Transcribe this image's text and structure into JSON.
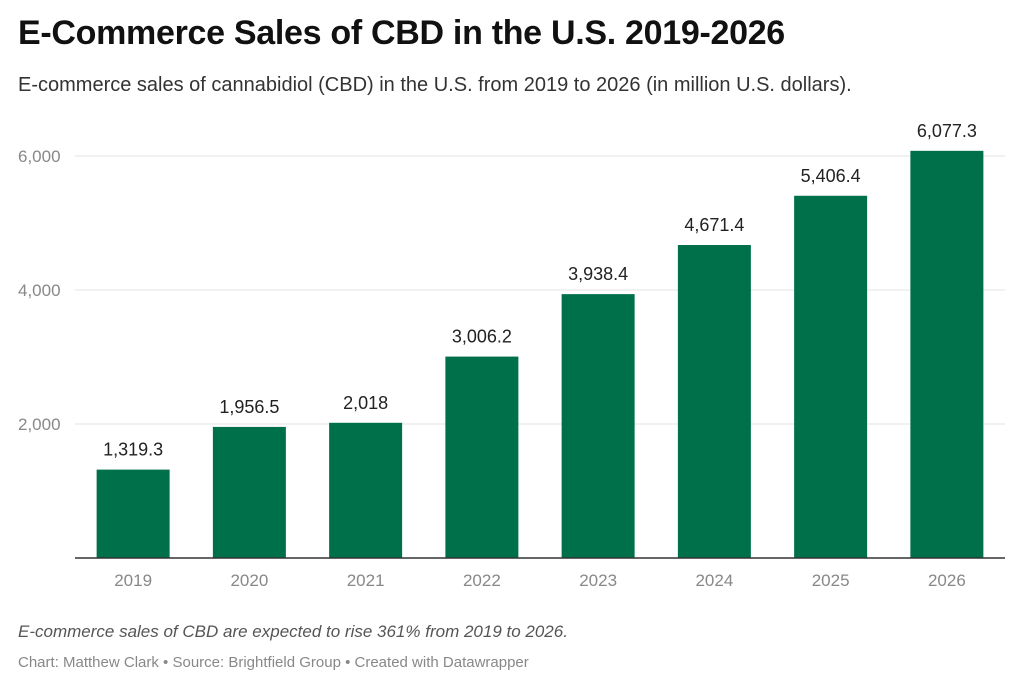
{
  "header": {
    "title": "E-Commerce Sales of CBD in the U.S. 2019-2026",
    "subtitle": "E-commerce sales of cannabidiol (CBD) in the U.S. from 2019 to 2026 (in million U.S. dollars)."
  },
  "footer": {
    "note": "E-commerce sales of CBD are expected to rise 361% from 2019 to 2026.",
    "chart_by": "Chart: Matthew Clark",
    "source": "Source: Brightfield Group",
    "created_with": "Created with Datawrapper",
    "separator": "•"
  },
  "colors": {
    "bar": "#00704a",
    "grid": "#e3e3e3",
    "axis_text": "#888888",
    "baseline": "#333333"
  },
  "chart_data": {
    "type": "bar",
    "categories": [
      "2019",
      "2020",
      "2021",
      "2022",
      "2023",
      "2024",
      "2025",
      "2026"
    ],
    "values": [
      1319.3,
      1956.5,
      2018,
      3006.2,
      3938.4,
      4671.4,
      5406.4,
      6077.3
    ],
    "value_labels": [
      "1,319.3",
      "1,956.5",
      "2,018",
      "3,006.2",
      "3,938.4",
      "4,671.4",
      "5,406.4",
      "6,077.3"
    ],
    "yticks": [
      2000,
      4000,
      6000
    ],
    "ytick_labels": [
      "2,000",
      "4,000",
      "6,000"
    ],
    "ylim": [
      0,
      6000
    ],
    "grid": true,
    "title": "E-Commerce Sales of CBD in the U.S. 2019-2026",
    "xlabel": "",
    "ylabel": ""
  }
}
